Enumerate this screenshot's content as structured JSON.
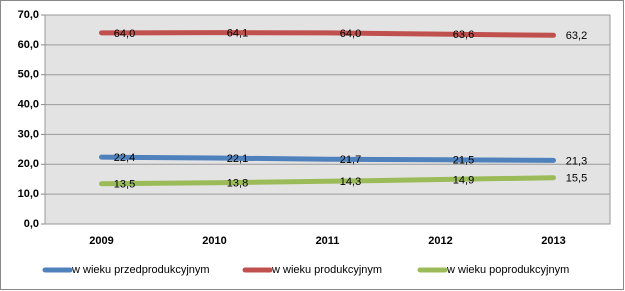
{
  "chart_data": {
    "type": "line",
    "categories": [
      "2009",
      "2010",
      "2011",
      "2012",
      "2013"
    ],
    "series": [
      {
        "name": "w wieku przedprodukcyjnym",
        "color": "#4f81bd",
        "values": [
          22.4,
          22.1,
          21.7,
          21.5,
          21.3
        ],
        "value_labels": [
          "22,4",
          "22,1",
          "21,7",
          "21,5",
          "21,3"
        ]
      },
      {
        "name": "w wieku produkcyjnym",
        "color": "#c0504d",
        "values": [
          64.0,
          64.1,
          64.0,
          63.6,
          63.2
        ],
        "value_labels": [
          "64,0",
          "64,1",
          "64,0",
          "63,6",
          "63,2"
        ]
      },
      {
        "name": "w wieku poprodukcyjnym",
        "color": "#9bbb59",
        "values": [
          13.5,
          13.8,
          14.3,
          14.9,
          15.5
        ],
        "value_labels": [
          "13,5",
          "13,8",
          "14,3",
          "14,9",
          "15,5"
        ]
      }
    ],
    "ylim": [
      0,
      70
    ],
    "yticks": [
      {
        "value": 0,
        "label": "0,0"
      },
      {
        "value": 10,
        "label": "10,0"
      },
      {
        "value": 20,
        "label": "20,0"
      },
      {
        "value": 30,
        "label": "30,0"
      },
      {
        "value": 40,
        "label": "40,0"
      },
      {
        "value": 50,
        "label": "50,0"
      },
      {
        "value": 60,
        "label": "60,0"
      },
      {
        "value": 70,
        "label": "70,0"
      }
    ],
    "grid": true,
    "legend": "bottom"
  }
}
